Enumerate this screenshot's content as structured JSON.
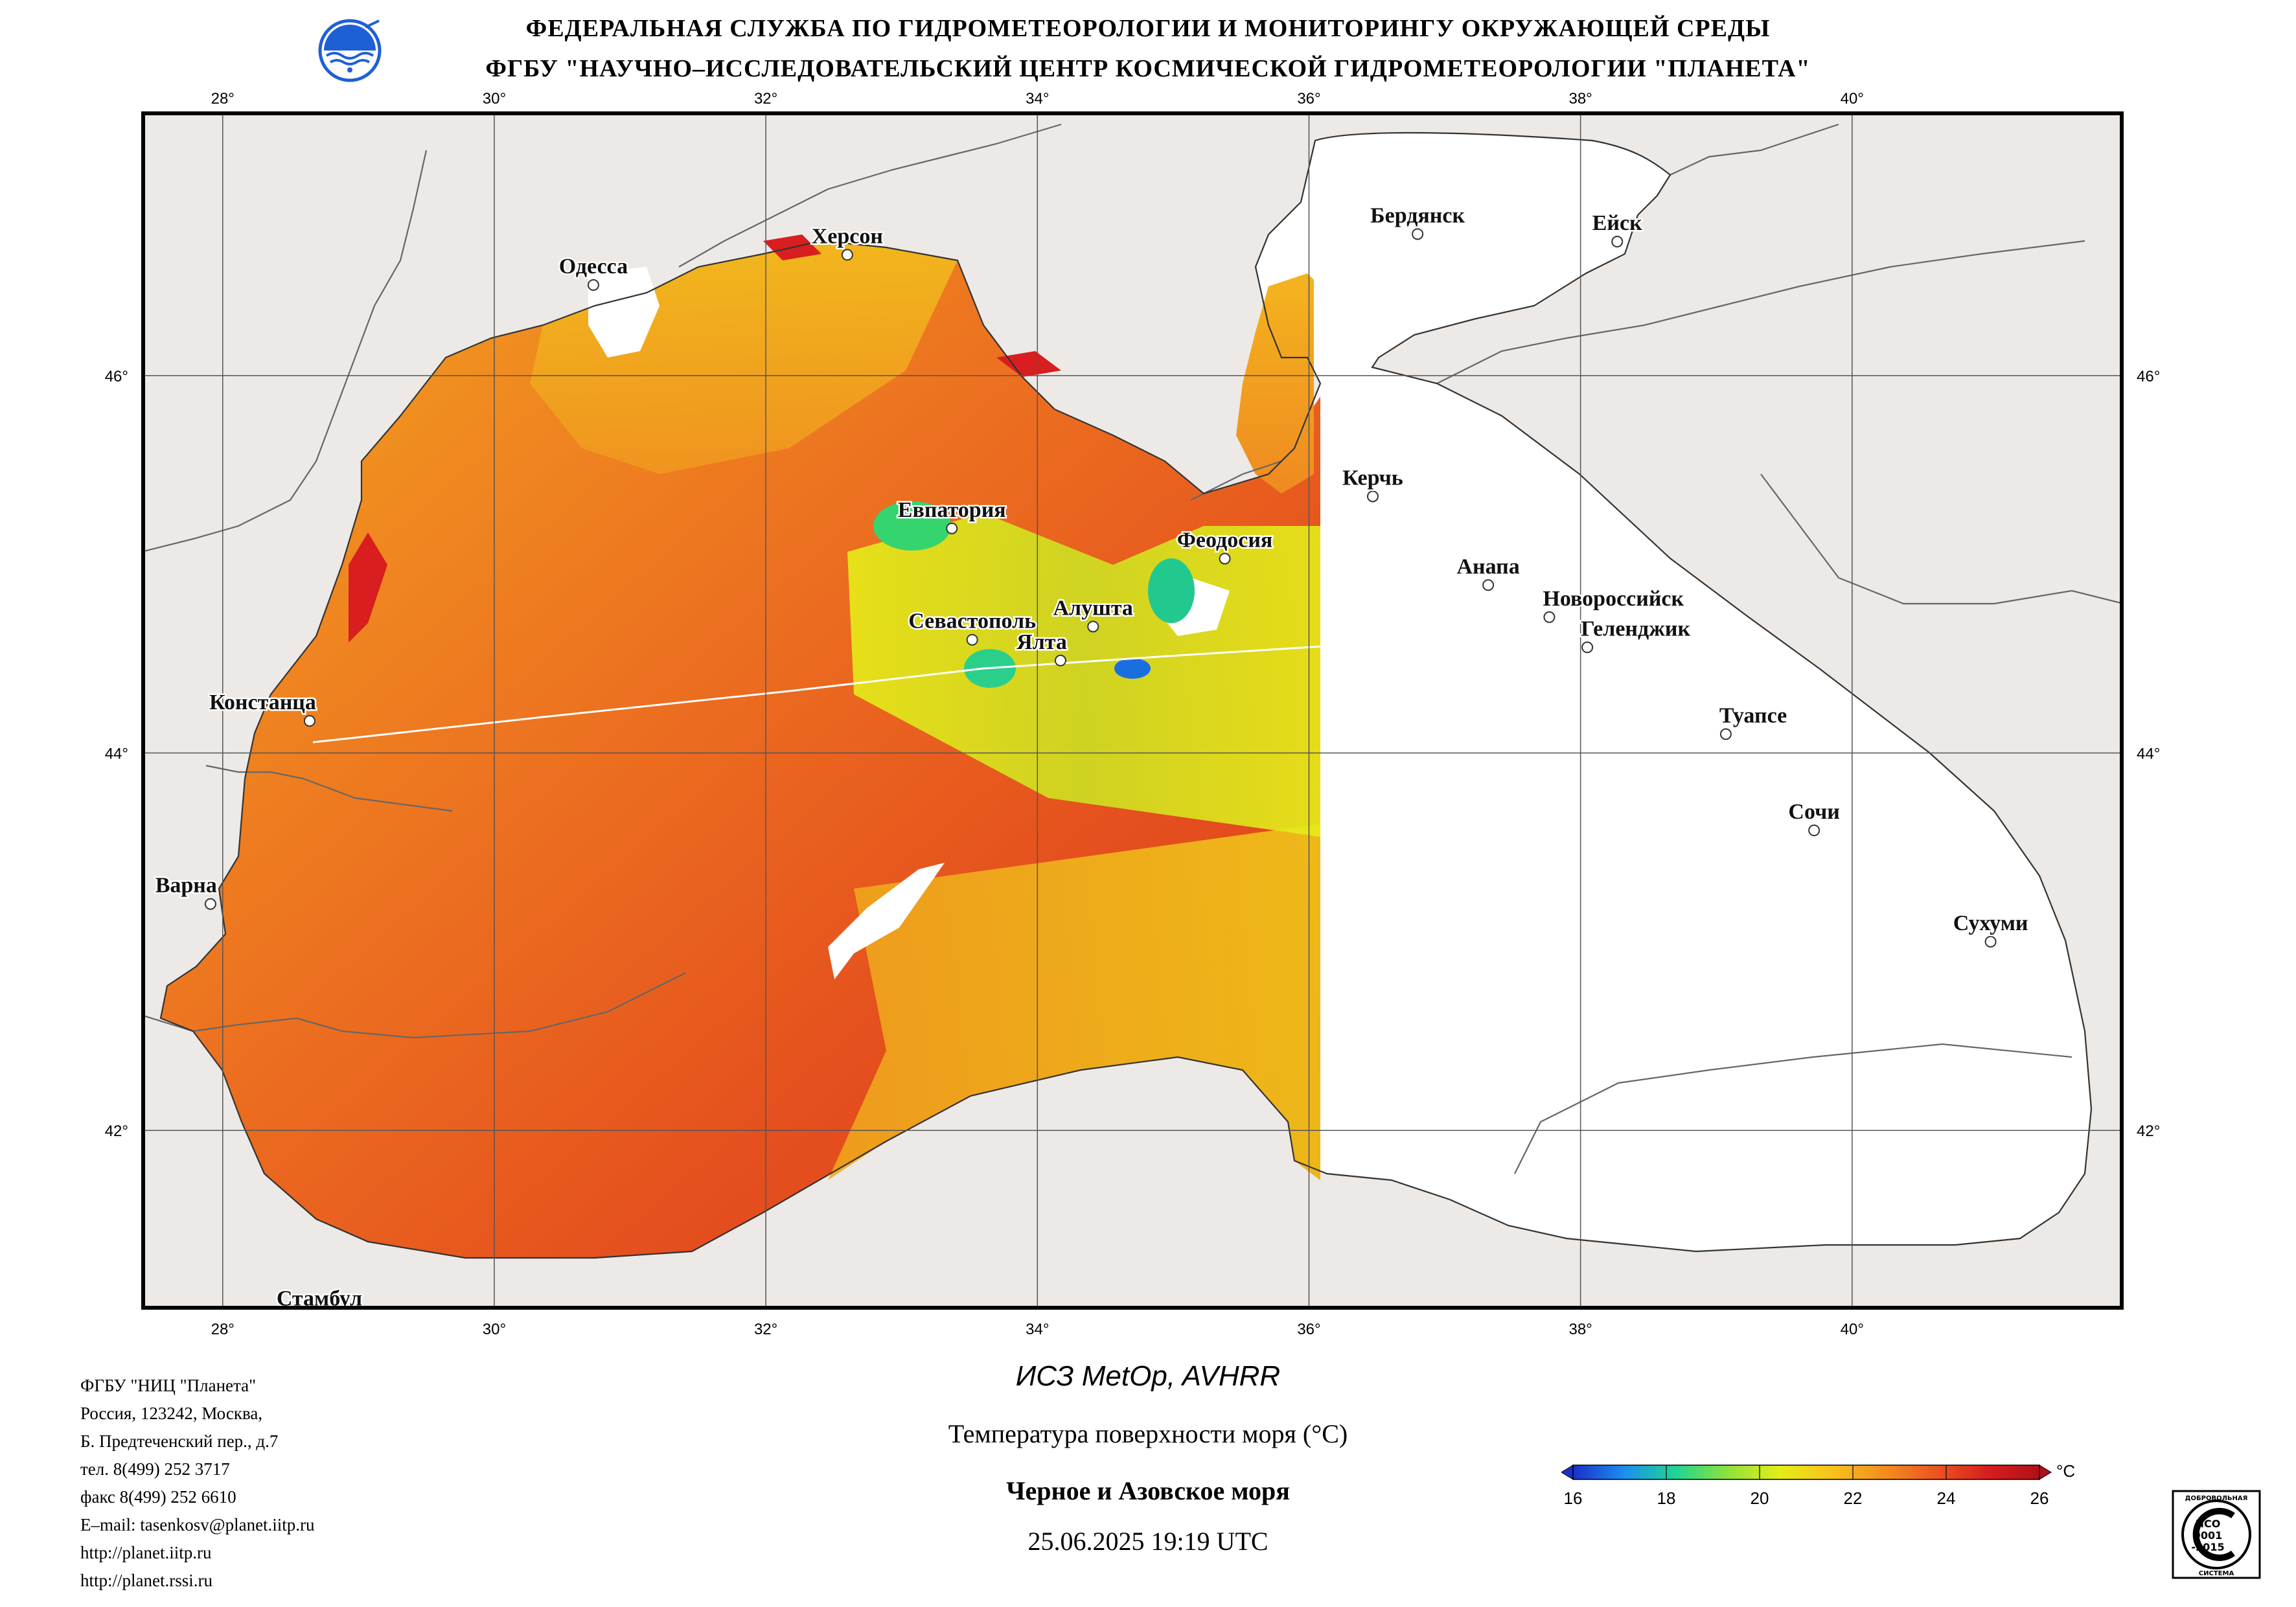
{
  "header": {
    "line1": "ФЕДЕРАЛЬНАЯ СЛУЖБА ПО ГИДРОМЕТЕОРОЛОГИИ И МОНИТОРИНГУ ОКРУЖАЮЩЕЙ СРЕДЫ",
    "line2": "ФГБУ \"НАУЧНО–ИССЛЕДОВАТЕЛЬСКИЙ ЦЕНТР КОСМИЧЕСКОЙ ГИДРОМЕТЕОРОЛОГИИ \"ПЛАНЕТА\""
  },
  "logo": {
    "icon": "roshydromet-globe-icon",
    "color": "#1f5fd6"
  },
  "map": {
    "lon_ticks": [
      "28°",
      "30°",
      "32°",
      "34°",
      "36°",
      "38°",
      "40°"
    ],
    "lat_ticks": [
      "46°",
      "44°",
      "42°"
    ],
    "lon_range": [
      27.4,
      42.0
    ],
    "lat_range": [
      41.05,
      47.4
    ],
    "land_color": "#ece9e6",
    "cities": [
      {
        "name": "Херсон",
        "lon": 32.6,
        "lat": 46.64,
        "label_pos": "above"
      },
      {
        "name": "Одесса",
        "lon": 30.73,
        "lat": 46.48,
        "label_pos": "above"
      },
      {
        "name": "Бердянск",
        "lon": 36.8,
        "lat": 46.75,
        "label_pos": "above"
      },
      {
        "name": "Ейск",
        "lon": 38.27,
        "lat": 46.71,
        "label_pos": "above"
      },
      {
        "name": "Керчь",
        "lon": 36.47,
        "lat": 45.36,
        "label_pos": "above"
      },
      {
        "name": "Евпатория",
        "lon": 33.37,
        "lat": 45.19,
        "label_pos": "above"
      },
      {
        "name": "Феодосия",
        "lon": 35.38,
        "lat": 45.03,
        "label_pos": "above"
      },
      {
        "name": "Анапа",
        "lon": 37.32,
        "lat": 44.89,
        "label_pos": "above"
      },
      {
        "name": "Новороссийск",
        "lon": 37.77,
        "lat": 44.72,
        "label_pos": "above-right"
      },
      {
        "name": "Геленджик",
        "lon": 38.05,
        "lat": 44.56,
        "label_pos": "above-right"
      },
      {
        "name": "Алушта",
        "lon": 34.41,
        "lat": 44.67,
        "label_pos": "above"
      },
      {
        "name": "Севастополь",
        "lon": 33.52,
        "lat": 44.6,
        "label_pos": "above"
      },
      {
        "name": "Ялта",
        "lon": 34.17,
        "lat": 44.49,
        "label_pos": "above-left"
      },
      {
        "name": "Констанца",
        "lon": 28.64,
        "lat": 44.17,
        "label_pos": "above-left"
      },
      {
        "name": "Туапсе",
        "lon": 39.07,
        "lat": 44.1,
        "label_pos": "above-right"
      },
      {
        "name": "Сочи",
        "lon": 39.72,
        "lat": 43.59,
        "label_pos": "above"
      },
      {
        "name": "Варна",
        "lon": 27.91,
        "lat": 43.2,
        "label_pos": "above-left"
      },
      {
        "name": "Сухуми",
        "lon": 41.02,
        "lat": 43.0,
        "label_pos": "above"
      },
      {
        "name": "Стамбул",
        "lon": 28.98,
        "lat": 41.01,
        "label_pos": "above-left"
      }
    ]
  },
  "info": {
    "lines": [
      "ФГБУ \"НИЦ \"Планета\"",
      "Россия, 123242, Москва,",
      "Б. Предтеченский пер., д.7",
      "тел. 8(499) 252 3717",
      "факс 8(499) 252 6610",
      "E–mail: tasenkosv@planet.iitp.ru",
      "http://planet.iitp.ru",
      "http://planet.rssi.ru"
    ]
  },
  "caption": {
    "satellite": "ИСЗ MetOp, AVHRR",
    "parameter": "Температура поверхности моря (°C)",
    "region": "Черное и Азовское моря",
    "datetime": "25.06.2025 19:19 UTC"
  },
  "colorbar": {
    "unit": "°C",
    "ticks": [
      "16",
      "18",
      "20",
      "22",
      "24",
      "26"
    ],
    "min": 16,
    "max": 26,
    "colors": [
      "#1b2fc9",
      "#1c8ff0",
      "#20d690",
      "#8fe33a",
      "#e6ec18",
      "#f6c21c",
      "#f48e1e",
      "#ec5520",
      "#d81e1e",
      "#b0101a"
    ]
  },
  "iso_badge": {
    "top_text": "ДОБРОВОЛЬНАЯ",
    "mid1": "ИСО",
    "mid2": "9001",
    "mid3": "-2015",
    "bottom_text": "СИСТЕМА"
  }
}
